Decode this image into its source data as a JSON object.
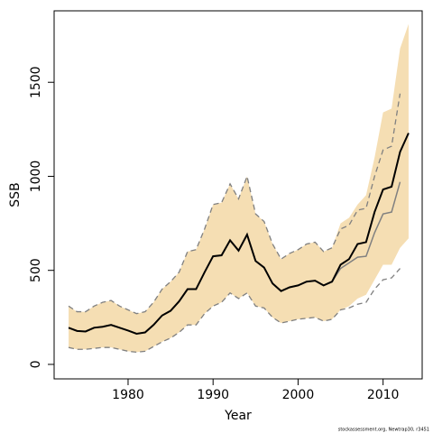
{
  "chart_data": {
    "type": "line",
    "xlabel": "Year",
    "ylabel": "SSB",
    "footnote": "stockassessment.org, Newtrap30, r3451",
    "x": [
      1973,
      1974,
      1975,
      1976,
      1977,
      1978,
      1979,
      1980,
      1981,
      1982,
      1983,
      1984,
      1985,
      1986,
      1987,
      1988,
      1989,
      1990,
      1991,
      1992,
      1993,
      1994,
      1995,
      1996,
      1997,
      1998,
      1999,
      2000,
      2001,
      2002,
      2003,
      2004,
      2005,
      2006,
      2007,
      2008,
      2009,
      2010,
      2011,
      2012,
      2013
    ],
    "band": {
      "color": "#f5deb3",
      "upper": [
        310,
        280,
        280,
        310,
        330,
        340,
        310,
        290,
        270,
        280,
        330,
        400,
        440,
        490,
        600,
        610,
        720,
        850,
        860,
        960,
        880,
        1000,
        800,
        760,
        640,
        560,
        590,
        610,
        640,
        650,
        600,
        620,
        750,
        780,
        850,
        900,
        1100,
        1340,
        1360,
        1680,
        1810
      ],
      "lower": [
        90,
        80,
        80,
        85,
        90,
        90,
        80,
        70,
        65,
        70,
        95,
        120,
        140,
        170,
        210,
        210,
        270,
        310,
        330,
        380,
        350,
        380,
        310,
        300,
        250,
        220,
        230,
        240,
        245,
        250,
        230,
        240,
        290,
        310,
        350,
        370,
        450,
        530,
        530,
        620,
        670
      ]
    },
    "series": [
      {
        "color": "#808080",
        "dash": true,
        "values": [
          310,
          280,
          280,
          310,
          330,
          340,
          310,
          290,
          270,
          280,
          330,
          400,
          440,
          490,
          600,
          610,
          720,
          850,
          860,
          960,
          880,
          1000,
          800,
          760,
          640,
          560,
          590,
          610,
          640,
          650,
          600,
          620,
          720,
          740,
          820,
          830,
          1000,
          1140,
          1160,
          1440,
          null
        ]
      },
      {
        "color": "#808080",
        "dash": true,
        "values": [
          90,
          80,
          80,
          85,
          90,
          90,
          80,
          70,
          65,
          70,
          95,
          120,
          140,
          170,
          210,
          210,
          270,
          310,
          330,
          380,
          350,
          380,
          310,
          300,
          250,
          220,
          230,
          240,
          245,
          250,
          230,
          240,
          290,
          300,
          320,
          330,
          400,
          450,
          460,
          510,
          null
        ]
      },
      {
        "color": "#808080",
        "dash": false,
        "width": 1.5,
        "values": [
          195,
          178,
          175,
          195,
          200,
          210,
          195,
          180,
          163,
          170,
          210,
          260,
          285,
          335,
          400,
          400,
          490,
          575,
          580,
          660,
          605,
          690,
          550,
          515,
          430,
          390,
          410,
          420,
          440,
          445,
          420,
          440,
          510,
          540,
          570,
          575,
          700,
          800,
          810,
          970,
          null
        ]
      },
      {
        "color": "#000000",
        "dash": false,
        "width": 2,
        "values": [
          195,
          178,
          175,
          195,
          200,
          210,
          195,
          180,
          163,
          170,
          210,
          260,
          285,
          335,
          400,
          400,
          490,
          575,
          580,
          660,
          605,
          690,
          550,
          515,
          430,
          390,
          410,
          420,
          440,
          445,
          420,
          440,
          530,
          560,
          640,
          650,
          810,
          930,
          945,
          1130,
          1230
        ]
      }
    ],
    "xlim": [
      1971.3,
      2014.6
    ],
    "ylim": [
      -77,
      1880
    ],
    "xticks": [
      1980,
      1990,
      2000,
      2010
    ],
    "yticks": [
      0,
      500,
      1000,
      1500
    ]
  }
}
